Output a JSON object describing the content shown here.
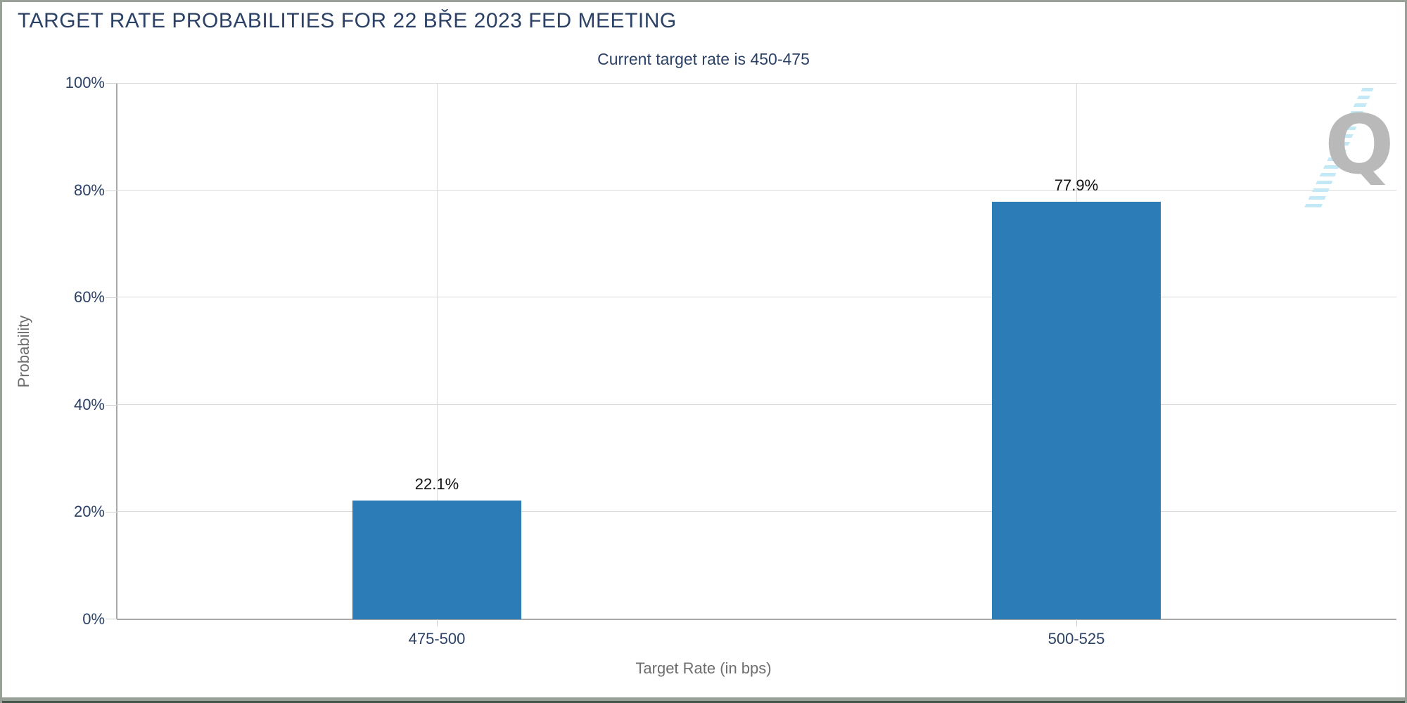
{
  "chart": {
    "title": "TARGET RATE PROBABILITIES FOR 22 BŘE 2023 FED MEETING",
    "subtitle": "Current target rate is 450-475",
    "xlabel": "Target Rate (in bps)",
    "ylabel": "Probability"
  },
  "watermark": {
    "letter": "Q"
  },
  "colors": {
    "bar": "#2b7cb7",
    "navy_text": "#2b4166",
    "axis_label_gray": "#6e6e6e",
    "grid": "#dadada",
    "axis_line": "#a8a8a8",
    "watermark_gray": "#b9b9b9",
    "watermark_blue": "#c3e9f6",
    "frame_border": "#98a098",
    "bottom_strip": "#46584b"
  },
  "chart_data": {
    "type": "bar",
    "title": "TARGET RATE PROBABILITIES FOR 22 BŘE 2023 FED MEETING",
    "subtitle": "Current target rate is 450-475",
    "categories": [
      "475-500",
      "500-525"
    ],
    "values": [
      22.1,
      77.9
    ],
    "value_labels": [
      "22.1%",
      "77.9%"
    ],
    "xlabel": "Target Rate (in bps)",
    "ylabel": "Probability",
    "ylim": [
      0,
      100
    ],
    "yticks": [
      0,
      20,
      40,
      60,
      80,
      100
    ],
    "ytick_labels": [
      "0%",
      "20%",
      "40%",
      "60%",
      "80%",
      "100%"
    ],
    "grid": true,
    "legend": "none",
    "bar_color": "#2b7cb7"
  }
}
